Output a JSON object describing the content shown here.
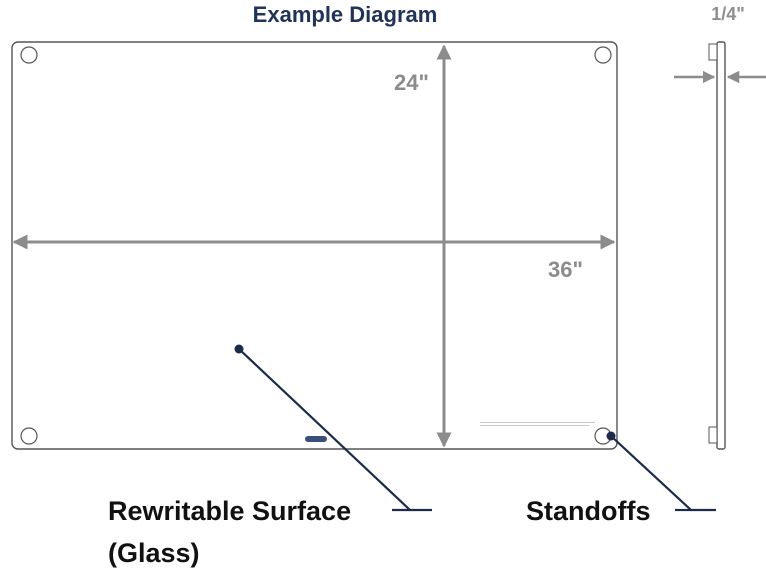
{
  "title": "Example Diagram",
  "thickness_label": "1/4\"",
  "height_label": "24\"",
  "width_label": "36\"",
  "surface_label_line1": "Rewritable Surface",
  "surface_label_line2": "(Glass)",
  "standoffs_label": "Standoffs",
  "colors": {
    "title": "#223358",
    "dimension": "#8c8c8c",
    "board_outline": "#555555",
    "callout_line": "#1d2b4a"
  }
}
